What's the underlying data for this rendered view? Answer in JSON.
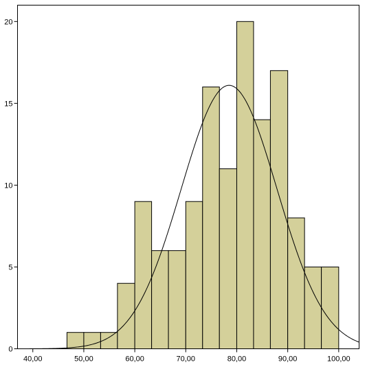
{
  "chart_data": {
    "type": "bar",
    "subtype": "histogram",
    "x_ticks": [
      "40,00",
      "50,00",
      "60,00",
      "70,00",
      "80,00",
      "90,00",
      "100,00"
    ],
    "x_tick_values": [
      40,
      50,
      60,
      70,
      80,
      90,
      100
    ],
    "y_ticks": [
      "0",
      "5",
      "10",
      "15",
      "20"
    ],
    "y_tick_values": [
      0,
      5,
      10,
      15,
      20
    ],
    "xlim": [
      37.0,
      104.0
    ],
    "ylim": [
      0,
      21.0
    ],
    "bins": [
      {
        "start": 46.7,
        "end": 50.0,
        "count": 1
      },
      {
        "start": 50.0,
        "end": 53.3,
        "count": 1
      },
      {
        "start": 53.3,
        "end": 56.6,
        "count": 1
      },
      {
        "start": 56.6,
        "end": 60.0,
        "count": 4
      },
      {
        "start": 60.0,
        "end": 63.3,
        "count": 9
      },
      {
        "start": 63.3,
        "end": 66.6,
        "count": 6
      },
      {
        "start": 66.6,
        "end": 70.0,
        "count": 6
      },
      {
        "start": 70.0,
        "end": 73.3,
        "count": 9
      },
      {
        "start": 73.3,
        "end": 76.6,
        "count": 16
      },
      {
        "start": 76.6,
        "end": 80.0,
        "count": 11
      },
      {
        "start": 80.0,
        "end": 83.3,
        "count": 20
      },
      {
        "start": 83.3,
        "end": 86.6,
        "count": 14
      },
      {
        "start": 86.6,
        "end": 90.0,
        "count": 17
      },
      {
        "start": 90.0,
        "end": 93.3,
        "count": 8
      },
      {
        "start": 93.3,
        "end": 96.6,
        "count": 5
      },
      {
        "start": 96.6,
        "end": 100.0,
        "count": 5
      }
    ],
    "normal_curve": {
      "mean": 78.5,
      "sd": 9.4,
      "peak": 16.1
    },
    "bar_color": "#d4d09a",
    "bar_edge_color": "#000000",
    "plot_background": "#ffffff",
    "grid": false,
    "title": "",
    "xlabel": "",
    "ylabel": ""
  }
}
